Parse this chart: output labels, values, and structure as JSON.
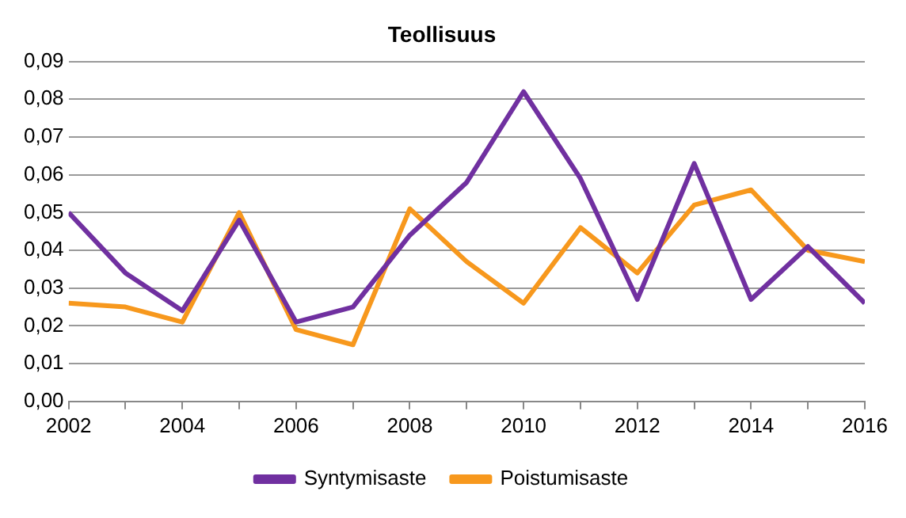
{
  "chart_data": {
    "type": "line",
    "title": "Teollisuus",
    "x": [
      2002,
      2003,
      2004,
      2005,
      2006,
      2007,
      2008,
      2009,
      2010,
      2011,
      2012,
      2013,
      2014,
      2015,
      2016
    ],
    "series": [
      {
        "name": "Syntymisaste",
        "color": "#7030a0",
        "values": [
          0.05,
          0.034,
          0.024,
          0.048,
          0.021,
          0.025,
          0.044,
          0.058,
          0.082,
          0.059,
          0.027,
          0.063,
          0.027,
          0.041,
          0.026
        ]
      },
      {
        "name": "Poistumisaste",
        "color": "#f7981d",
        "values": [
          0.026,
          0.025,
          0.021,
          0.05,
          0.019,
          0.015,
          0.051,
          0.037,
          0.026,
          0.046,
          0.034,
          0.052,
          0.056,
          0.04,
          0.037
        ]
      }
    ],
    "xlim": [
      2002,
      2016
    ],
    "xticks": [
      2002,
      {
        "value": 2003,
        "label": null
      },
      2004,
      {
        "value": 2005,
        "label": null
      },
      2006,
      {
        "value": 2007,
        "label": null
      },
      2008,
      {
        "value": 2009,
        "label": null
      },
      2010,
      {
        "value": 2011,
        "label": null
      },
      2012,
      {
        "value": 2013,
        "label": null
      },
      2014,
      {
        "value": 2015,
        "label": null
      },
      2016
    ],
    "ylim": [
      0,
      0.09
    ],
    "yticks": [
      {
        "value": 0,
        "label": "0,00"
      },
      {
        "value": 0.01,
        "label": "0,01"
      },
      {
        "value": 0.02,
        "label": "0,02"
      },
      {
        "value": 0.03,
        "label": "0,03"
      },
      {
        "value": 0.04,
        "label": "0,04"
      },
      {
        "value": 0.05,
        "label": "0,05"
      },
      {
        "value": 0.06,
        "label": "0,06"
      },
      {
        "value": 0.07,
        "label": "0,07"
      },
      {
        "value": 0.08,
        "label": "0,08"
      },
      {
        "value": 0.09,
        "label": "0,09"
      }
    ],
    "grid": "y",
    "legend": "bottom",
    "marker": "none",
    "line_style": "solid"
  }
}
